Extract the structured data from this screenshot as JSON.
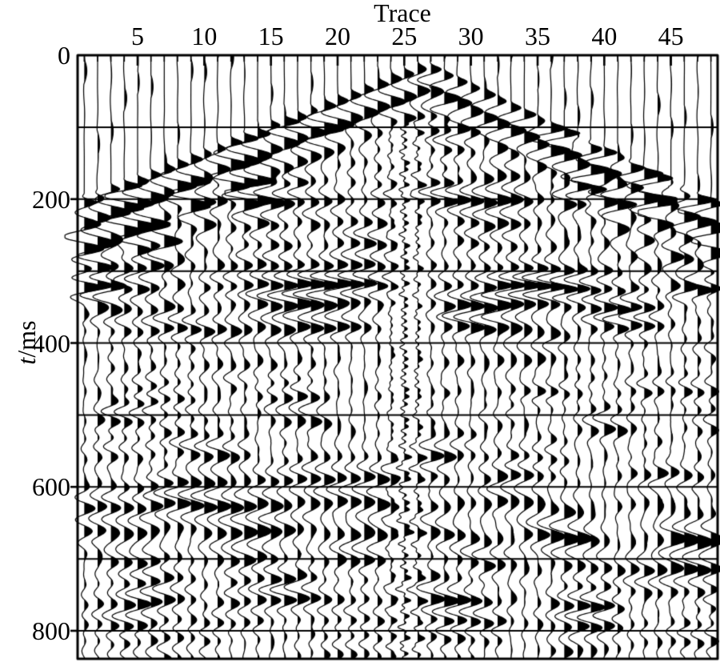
{
  "figure": {
    "background_color": "#ffffff",
    "ink_color": "#000000"
  },
  "chart_data": {
    "type": "area",
    "variant": "seismic shot gather, variable-area wiggle-trace display (positive lobes filled black)",
    "title": "",
    "xlabel": "Trace",
    "ylabel": "t/ms",
    "x_axis": {
      "label": "Trace",
      "position": "top",
      "tick_labels": [
        5,
        10,
        15,
        20,
        25,
        30,
        35,
        40,
        45
      ],
      "n_traces": 48,
      "minor_tick_every_trace": true
    },
    "y_axis": {
      "label": "t/ms",
      "symbol": "t",
      "unit_suffix": "/ms",
      "position": "left",
      "direction": "downward",
      "tick_labels": [
        0,
        200,
        400,
        600,
        800
      ],
      "range_ms": [
        0,
        839
      ]
    },
    "timing_lines_ms": [
      100,
      200,
      300,
      400,
      500,
      600,
      700,
      800
    ],
    "source": {
      "apex_trace": 26.5,
      "apex_time_ms": 12
    },
    "first_breaks": {
      "shape": "inverted-V direct/refracted first arrivals",
      "left_slope_ms_per_trace": 7.4,
      "right_slope_ms_per_trace": 9.0,
      "trace1_time_ms": 200,
      "trace48_time_ms": 205
    },
    "dominant_period_ms": 30,
    "features": [
      "quiet muted zone with nearly straight traces above the first-break line",
      "thick black first-arrival band dipping away from apex near trace 26",
      "strong ground-roll/shingled energy just below first breaks at far offsets",
      "dense reflection coda filling the section down to the bottom",
      "high-frequency low-amplitude ringing on trace 25 below ~450 ms",
      "horizontal timing lines every 100 ms drawn across all traces"
    ],
    "legend": null,
    "grid": "horizontal timing lines only"
  }
}
